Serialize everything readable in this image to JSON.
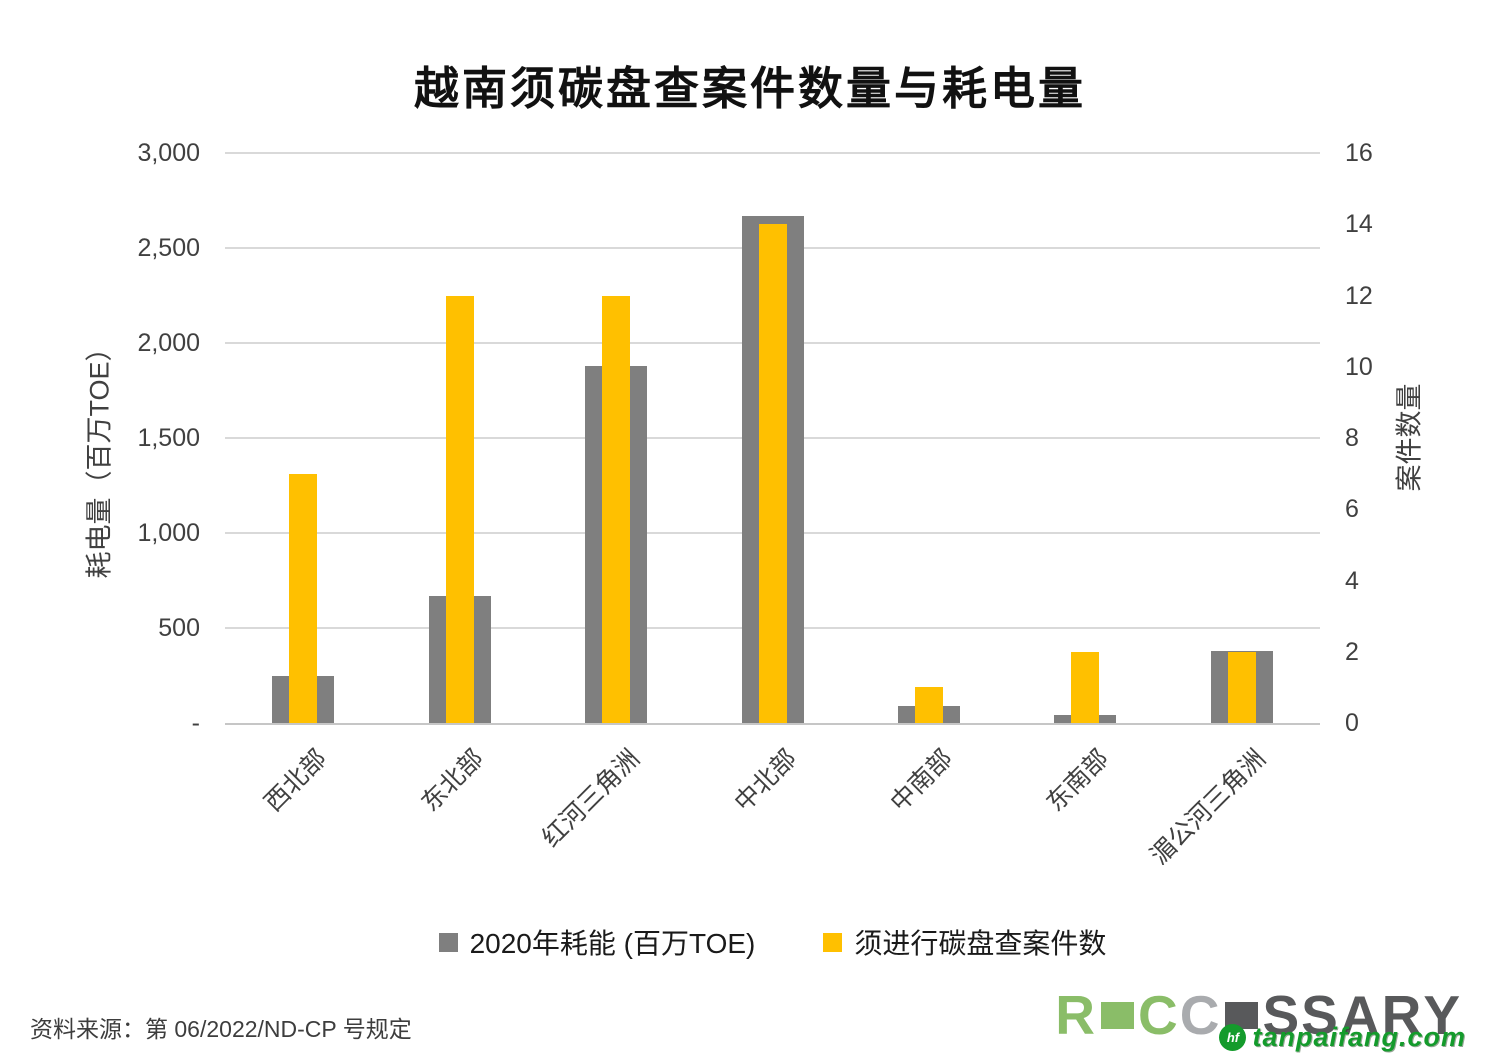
{
  "title": "越南须碳盘查案件数量与耗电量",
  "chart_data": {
    "type": "bar",
    "categories": [
      "西北部",
      "东北部",
      "红河三角洲",
      "中北部",
      "中南部",
      "东南部",
      "湄公河三角洲"
    ],
    "series": [
      {
        "name": "2020年耗能 (百万TOE)",
        "axis": "left",
        "color": "#7F7F7F",
        "values": [
          250,
          670,
          1880,
          2670,
          90,
          40,
          380
        ]
      },
      {
        "name": "须进行碳盘查案件数",
        "axis": "right",
        "color": "#FFC000",
        "values": [
          7,
          12,
          12,
          14,
          1,
          2,
          2
        ]
      }
    ],
    "left_axis": {
      "label": "耗电量（百万TOE）",
      "min": 0,
      "max": 3000,
      "step": 500,
      "tick_labels": [
        "3,000",
        "2,500",
        "2,000",
        "1,500",
        "1,000",
        "500",
        "-"
      ]
    },
    "right_axis": {
      "label": "案件数量",
      "min": 0,
      "max": 16,
      "step": 2,
      "tick_labels": [
        "16",
        "14",
        "12",
        "10",
        "8",
        "6",
        "4",
        "2",
        "0"
      ]
    },
    "grid": true,
    "legend_position": "bottom"
  },
  "footer": {
    "source": "资料来源：第 06/2022/ND-CP 号规定"
  },
  "branding": {
    "logo_text": "RECCESSARY",
    "logo_green": "#8ABD68",
    "logo_light_gray": "#A9ABAE",
    "logo_dark": "#58595B",
    "watermark_text": "tanpaifang.com",
    "watermark_icon": "hf",
    "watermark_color": "#149B2C"
  },
  "colors": {
    "grid": "#D9D9D9",
    "axis_line": "#C6C6C6",
    "tick_text": "#404040",
    "title_text": "#111111"
  }
}
